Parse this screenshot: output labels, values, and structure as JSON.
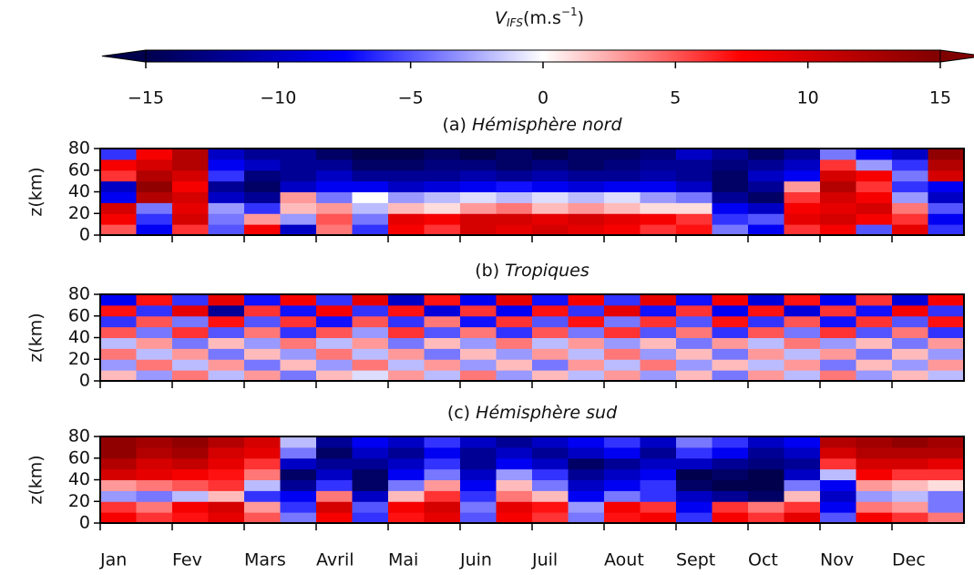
{
  "colorbar": {
    "symbol": "V",
    "subscript": "IFS",
    "unit": "(m.s",
    "exponent": "−1",
    "close": ")",
    "colormap": "seismic",
    "extend": "both",
    "lim": [
      -15,
      15
    ],
    "ticks": [
      {
        "value": -15,
        "label": "−15"
      },
      {
        "value": -10,
        "label": "−10"
      },
      {
        "value": -5,
        "label": "−5"
      },
      0,
      5,
      10,
      15
    ]
  },
  "x_categories": [
    "Jan",
    "Fev",
    "Mars",
    "Avril",
    "Mai",
    "Juin",
    "Juil",
    "Aout",
    "Sept",
    "Oct",
    "Nov",
    "Dec"
  ],
  "chart_data": [
    {
      "type": "heatmap",
      "label": "(a)",
      "region": "Hémisphère nord",
      "ylabel": "z(km)",
      "ylim": [
        0,
        80
      ],
      "yticks": [
        0,
        20,
        40,
        60,
        80
      ],
      "z": [
        [
          5,
          -8,
          6,
          -5,
          8,
          -10,
          4,
          -6,
          8,
          6,
          10,
          9,
          10,
          9,
          8,
          6,
          7,
          -4,
          -8,
          6,
          8,
          -5,
          9,
          -6
        ],
        [
          8,
          -6,
          10,
          -4,
          3,
          -3,
          5,
          -4,
          9,
          8,
          10,
          10,
          9,
          10,
          9,
          8,
          6,
          -6,
          -5,
          9,
          10,
          8,
          6,
          -8
        ],
        [
          10,
          -4,
          9,
          -3,
          -6,
          2,
          3,
          -2,
          2,
          1,
          3,
          4,
          2,
          3,
          2,
          1,
          1,
          -8,
          -10,
          8,
          9,
          10,
          4,
          -5
        ],
        [
          -8,
          12,
          10,
          -10,
          -12,
          3,
          -4,
          0,
          -3,
          -2,
          -1,
          -2,
          -1,
          -2,
          -1,
          -3,
          -4,
          -12,
          -14,
          6,
          10,
          8,
          -3,
          -10
        ],
        [
          -10,
          14,
          8,
          -12,
          -14,
          -10,
          -8,
          -8,
          -10,
          -9,
          -8,
          -7,
          -8,
          -9,
          -8,
          -8,
          -10,
          -14,
          -12,
          3,
          12,
          6,
          -6,
          -8
        ],
        [
          6,
          12,
          10,
          -6,
          -13,
          -12,
          -10,
          -12,
          -12,
          -12,
          -11,
          -12,
          -11,
          -12,
          -12,
          -11,
          -12,
          -14,
          -10,
          -8,
          10,
          8,
          -4,
          10
        ],
        [
          8,
          10,
          12,
          -8,
          -10,
          -12,
          -12,
          -14,
          -14,
          -13,
          -13,
          -14,
          -13,
          -14,
          -13,
          -12,
          -12,
          -13,
          -12,
          -10,
          6,
          -3,
          -6,
          12
        ],
        [
          -6,
          8,
          12,
          -10,
          -12,
          -12,
          -14,
          -15,
          -15,
          -14,
          -15,
          -14,
          -15,
          -14,
          -14,
          -13,
          -10,
          -12,
          -14,
          -12,
          -4,
          -8,
          -10,
          14
        ]
      ]
    },
    {
      "type": "heatmap",
      "label": "(b)",
      "region": "Tropiques",
      "ylabel": "z(km)",
      "ylim": [
        0,
        80
      ],
      "yticks": [
        0,
        20,
        40,
        60,
        80
      ],
      "z": [
        [
          2,
          -3,
          4,
          -2,
          3,
          -4,
          2,
          -1,
          3,
          -2,
          4,
          -3,
          2,
          -2,
          3,
          -3,
          2,
          -4,
          3,
          -2,
          4,
          -3,
          2,
          -2
        ],
        [
          -3,
          4,
          -2,
          3,
          -4,
          2,
          -3,
          4,
          -2,
          3,
          -3,
          2,
          -4,
          3,
          -2,
          4,
          -3,
          2,
          -2,
          3,
          -4,
          2,
          -3,
          3
        ],
        [
          4,
          -2,
          3,
          -4,
          2,
          -3,
          4,
          -2,
          3,
          -4,
          2,
          -3,
          3,
          -2,
          4,
          -3,
          2,
          -4,
          3,
          -2,
          3,
          -4,
          2,
          -3
        ],
        [
          -2,
          3,
          -4,
          2,
          -3,
          4,
          -2,
          3,
          -4,
          2,
          -3,
          4,
          -2,
          3,
          -3,
          2,
          -4,
          3,
          -2,
          4,
          -3,
          2,
          -4,
          3
        ],
        [
          5,
          -4,
          6,
          -5,
          4,
          -6,
          5,
          -3,
          6,
          -5,
          4,
          -6,
          5,
          -4,
          6,
          -5,
          4,
          -6,
          5,
          -4,
          6,
          -5,
          4,
          -6
        ],
        [
          -6,
          5,
          -4,
          7,
          -5,
          6,
          -7,
          5,
          -6,
          4,
          -7,
          6,
          -5,
          7,
          -4,
          6,
          -5,
          7,
          -6,
          5,
          -7,
          6,
          -5,
          7
        ],
        [
          7,
          -6,
          9,
          -12,
          6,
          -7,
          8,
          -6,
          7,
          -9,
          6,
          -8,
          7,
          -6,
          9,
          -7,
          6,
          -8,
          7,
          -9,
          6,
          -7,
          8,
          -6
        ],
        [
          -8,
          7,
          -6,
          9,
          -7,
          8,
          -6,
          9,
          -10,
          7,
          -8,
          9,
          -7,
          8,
          -6,
          9,
          -7,
          8,
          -9,
          7,
          -8,
          6,
          -9,
          8
        ]
      ]
    },
    {
      "type": "heatmap",
      "label": "(c)",
      "region": "Hémisphère sud",
      "ylabel": "z(km)",
      "ylim": [
        0,
        80
      ],
      "yticks": [
        0,
        20,
        40,
        60,
        80
      ],
      "z": [
        [
          8,
          6,
          7,
          9,
          5,
          -4,
          8,
          -6,
          7,
          9,
          -5,
          8,
          6,
          -4,
          7,
          8,
          -6,
          8,
          6,
          9,
          -5,
          8,
          6,
          4
        ],
        [
          6,
          4,
          8,
          10,
          3,
          -6,
          10,
          -5,
          8,
          10,
          -4,
          9,
          7,
          -3,
          8,
          6,
          -8,
          6,
          4,
          6,
          -8,
          4,
          3,
          -4
        ],
        [
          -3,
          -4,
          -2,
          2,
          -6,
          -8,
          4,
          -10,
          2,
          6,
          -6,
          4,
          2,
          -8,
          -4,
          -6,
          -10,
          -12,
          -14,
          2,
          -10,
          -3,
          -2,
          -4
        ],
        [
          3,
          4,
          5,
          6,
          -2,
          -12,
          -6,
          -14,
          -4,
          3,
          -8,
          2,
          -4,
          -10,
          -8,
          -6,
          -14,
          -15,
          -15,
          -4,
          -8,
          3,
          2,
          1
        ],
        [
          10,
          9,
          8,
          7,
          4,
          -14,
          -10,
          -14,
          -8,
          -4,
          -10,
          -3,
          -6,
          -12,
          -10,
          -8,
          -15,
          -14,
          -15,
          -10,
          -2,
          8,
          6,
          6
        ],
        [
          12,
          10,
          11,
          9,
          6,
          -10,
          -12,
          -12,
          -10,
          -6,
          -12,
          -8,
          -10,
          -14,
          -12,
          -10,
          -10,
          -12,
          -13,
          -12,
          6,
          10,
          10,
          9
        ],
        [
          14,
          12,
          13,
          10,
          9,
          -4,
          -14,
          -10,
          -12,
          -8,
          -12,
          -10,
          -12,
          -10,
          -8,
          -12,
          -6,
          -8,
          -12,
          -10,
          10,
          12,
          12,
          12
        ],
        [
          14,
          13,
          14,
          12,
          10,
          -2,
          -12,
          -8,
          -10,
          -6,
          -10,
          -12,
          -10,
          -8,
          -6,
          -10,
          -4,
          -6,
          -10,
          -8,
          12,
          13,
          14,
          13
        ]
      ]
    }
  ]
}
